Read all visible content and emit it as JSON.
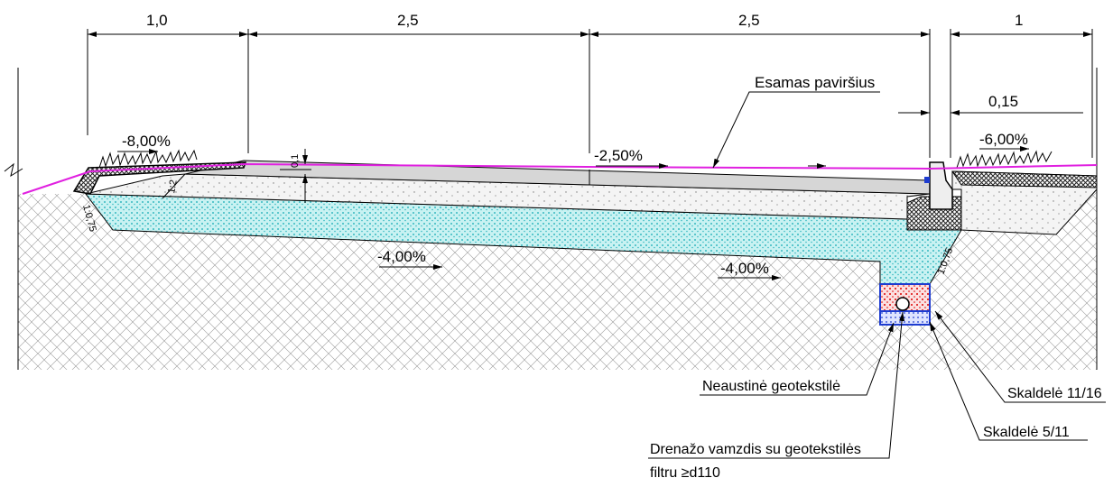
{
  "dimensions": [
    "1,0",
    "2,5",
    "2,5",
    "1",
    "0,15"
  ],
  "surface_label": "Esamas paviršius",
  "slopes": [
    "-8,00%",
    "-2,50%",
    "-6,00%",
    "-4,00%",
    "-4,00%"
  ],
  "embankment_slopes": [
    "1:2",
    "1:0,75",
    "1:0,75"
  ],
  "layer_thickness": "0,1",
  "callouts": [
    "Neaustinė geotekstilė",
    "Skaldelė 11/16",
    "Skaldelė 5/11",
    "Drenažo vamzdis su geotekstilės",
    "filtru ≥d110"
  ]
}
